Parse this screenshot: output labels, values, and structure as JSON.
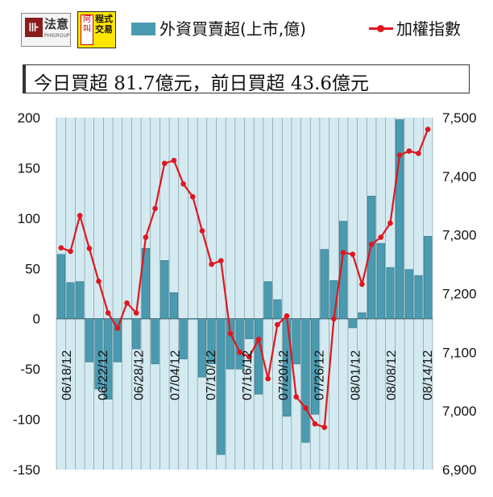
{
  "header": {
    "logo1_text": "法意",
    "logo1_sub": "PHIGROUP",
    "logo1_mark": "⊪",
    "logo2_box": "阿叫",
    "logo2_chars": "程式交易"
  },
  "summary": "今日買超 81.7億元，前日買超 43.6億元",
  "chart_data": {
    "type": "bar+line",
    "legend": [
      "外資買賣超(上市,億)",
      "加權指數"
    ],
    "x_tick_labels": [
      "06/18/12",
      "06/22/12",
      "06/28/12",
      "07/04/12",
      "07/10/12",
      "07/16/12",
      "07/20/12",
      "07/26/12",
      "08/01/12",
      "08/08/12",
      "08/14/12"
    ],
    "y_left": {
      "min": -150,
      "max": 200,
      "ticks": [
        -150,
        -100,
        -50,
        0,
        50,
        100,
        150,
        200
      ]
    },
    "y_right": {
      "min": 6900,
      "max": 7500,
      "ticks": [
        6900,
        7000,
        7100,
        7200,
        7300,
        7400,
        7500
      ]
    },
    "series": [
      {
        "name": "外資買賣超(上市,億)",
        "type": "bar",
        "values": [
          64,
          36,
          37,
          -43,
          -70,
          -80,
          -43,
          0,
          -30,
          70,
          -45,
          58,
          26,
          -40,
          0,
          -58,
          -45,
          -135,
          -50,
          -50,
          -20,
          -75,
          37,
          19,
          -97,
          -45,
          -123,
          -95,
          69,
          38,
          97,
          -9,
          6,
          122,
          75,
          51,
          198,
          49,
          43,
          82
        ]
      },
      {
        "name": "加權指數",
        "type": "line",
        "values": [
          7278,
          7272,
          7333,
          7277,
          7221,
          7167,
          7141,
          7184,
          7167,
          7296,
          7345,
          7422,
          7427,
          7387,
          7365,
          7307,
          7250,
          7256,
          7132,
          7100,
          7092,
          7122,
          7055,
          7147,
          7162,
          7024,
          7005,
          6978,
          6972,
          7157,
          7270,
          7267,
          7216,
          7284,
          7296,
          7320,
          7436,
          7443,
          7439,
          7480
        ]
      }
    ],
    "colors": {
      "bar": "#4a9ab0",
      "line": "#e0161e",
      "plot_bg": "#d3eaf1",
      "grid": "#7a8a92"
    }
  }
}
